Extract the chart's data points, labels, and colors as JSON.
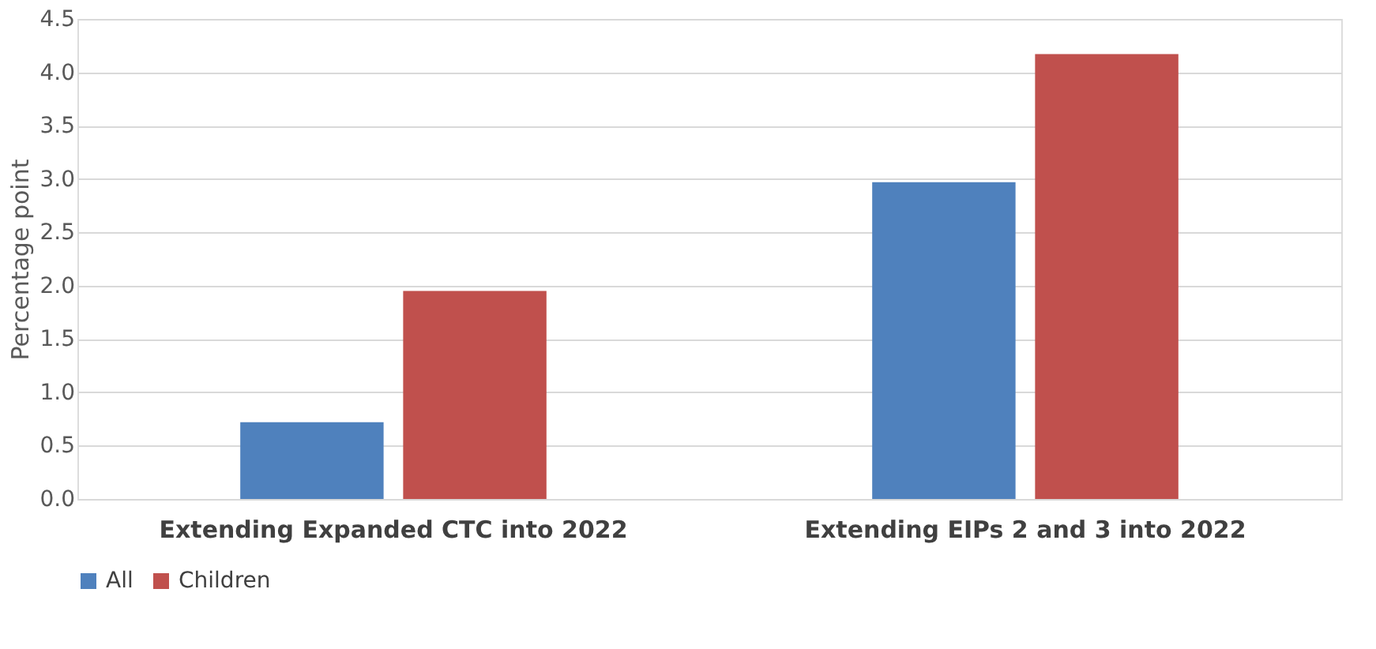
{
  "chart_data": {
    "type": "bar",
    "ylabel": "Percentage point",
    "categories": [
      "Extending Expanded CTC into 2022",
      "Extending EIPs 2 and 3 into 2022"
    ],
    "series": [
      {
        "name": "All",
        "color": "#4f81bd",
        "values": [
          0.72,
          2.97
        ]
      },
      {
        "name": "Children",
        "color": "#c0504d",
        "values": [
          1.95,
          4.17
        ]
      }
    ],
    "ylim": [
      0,
      4.5
    ],
    "yticks": [
      {
        "value": 0,
        "label": "0.0"
      },
      {
        "value": 0.5,
        "label": "0.5"
      },
      {
        "value": 1,
        "label": "1.0"
      },
      {
        "value": 1.5,
        "label": "1.5"
      },
      {
        "value": 2,
        "label": "2.0"
      },
      {
        "value": 2.5,
        "label": "2.5"
      },
      {
        "value": 3,
        "label": "3.0"
      },
      {
        "value": 3.5,
        "label": "3.5"
      },
      {
        "value": 4,
        "label": "4.0"
      },
      {
        "value": 4.5,
        "label": "4.5"
      }
    ],
    "grid": "y",
    "legend": "bottom"
  }
}
